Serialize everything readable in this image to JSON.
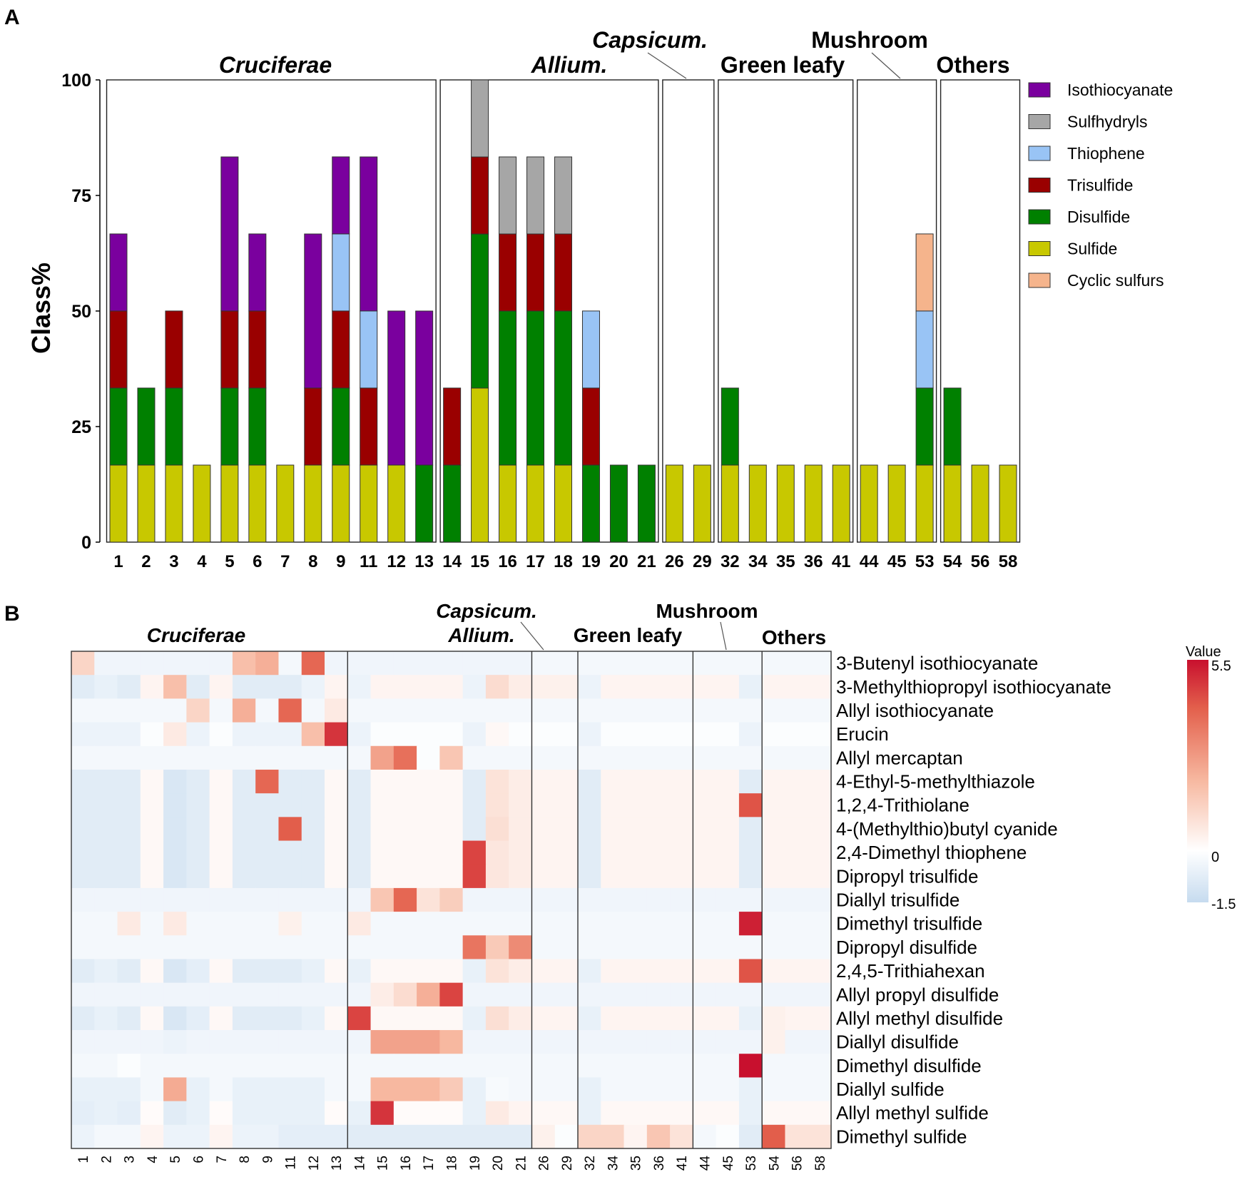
{
  "panel_a_label": "A",
  "panel_b_label": "B",
  "chart_data": [
    {
      "type": "bar",
      "stacked": true,
      "ylabel": "Class%",
      "ylim": [
        0,
        100
      ],
      "yticks": [
        "0",
        "25",
        "50",
        "75",
        "100"
      ],
      "categories": [
        "1",
        "2",
        "3",
        "4",
        "5",
        "6",
        "7",
        "8",
        "9",
        "11",
        "12",
        "13",
        "14",
        "15",
        "16",
        "17",
        "18",
        "19",
        "20",
        "21",
        "26",
        "29",
        "32",
        "34",
        "35",
        "36",
        "41",
        "44",
        "45",
        "53",
        "54",
        "56",
        "58"
      ],
      "groups": [
        {
          "name": "Cruciferae",
          "italic": true,
          "start": 0,
          "end": 11
        },
        {
          "name": "Allium.",
          "italic": true,
          "start": 12,
          "end": 19
        },
        {
          "name": "Capsicum.",
          "italic": true,
          "start": 20,
          "end": 21
        },
        {
          "name": "Green leafy",
          "italic": false,
          "start": 22,
          "end": 26
        },
        {
          "name": "Mushroom",
          "italic": false,
          "start": 27,
          "end": 29
        },
        {
          "name": "Others",
          "italic": false,
          "start": 30,
          "end": 32
        }
      ],
      "series": [
        {
          "name": "Sulfide",
          "color": "#c8c800",
          "values": [
            16.67,
            16.67,
            16.67,
            16.67,
            16.67,
            16.67,
            16.67,
            16.67,
            16.67,
            16.67,
            16.67,
            0,
            0,
            33.33,
            16.67,
            16.67,
            16.67,
            0,
            0,
            0,
            16.67,
            16.67,
            16.67,
            16.67,
            16.67,
            16.67,
            16.67,
            16.67,
            16.67,
            16.67,
            16.67,
            16.67,
            16.67
          ]
        },
        {
          "name": "Disulfide",
          "color": "#008000",
          "values": [
            16.67,
            16.67,
            16.67,
            0,
            16.67,
            16.67,
            0,
            0,
            16.67,
            0,
            0,
            16.67,
            16.67,
            33.33,
            33.33,
            33.33,
            33.33,
            16.67,
            16.67,
            16.67,
            0,
            0,
            16.67,
            0,
            0,
            0,
            0,
            0,
            0,
            16.67,
            16.67,
            0,
            0
          ]
        },
        {
          "name": "Trisulfide",
          "color": "#9a0000",
          "values": [
            16.67,
            0,
            16.67,
            0,
            16.67,
            16.67,
            0,
            16.67,
            16.67,
            16.67,
            0,
            0,
            16.67,
            16.67,
            16.67,
            16.67,
            16.67,
            16.67,
            0,
            0,
            0,
            0,
            0,
            0,
            0,
            0,
            0,
            0,
            0,
            0,
            0,
            0,
            0
          ]
        },
        {
          "name": "Thiophene",
          "color": "#99c4f5",
          "values": [
            0,
            0,
            0,
            0,
            0,
            0,
            0,
            0,
            16.67,
            16.67,
            0,
            0,
            0,
            0,
            0,
            0,
            0,
            16.67,
            0,
            0,
            0,
            0,
            0,
            0,
            0,
            0,
            0,
            0,
            0,
            16.67,
            0,
            0,
            0
          ]
        },
        {
          "name": "Isothiocyanate",
          "color": "#7a009e",
          "values": [
            16.67,
            0,
            0,
            0,
            33.33,
            16.67,
            0,
            33.33,
            16.67,
            33.33,
            33.33,
            33.33,
            0,
            0,
            0,
            0,
            0,
            0,
            0,
            0,
            0,
            0,
            0,
            0,
            0,
            0,
            0,
            0,
            0,
            0,
            0,
            0,
            0
          ]
        },
        {
          "name": "Sulfhydryls",
          "color": "#a6a6a6",
          "values": [
            0,
            0,
            0,
            0,
            0,
            0,
            0,
            0,
            0,
            0,
            0,
            0,
            0,
            16.67,
            16.67,
            16.67,
            16.67,
            0,
            0,
            0,
            0,
            0,
            0,
            0,
            0,
            0,
            0,
            0,
            0,
            0,
            0,
            0,
            0
          ]
        },
        {
          "name": "Cyclic sulfurs",
          "color": "#f5b48c",
          "values": [
            0,
            0,
            0,
            0,
            0,
            0,
            0,
            0,
            0,
            0,
            0,
            0,
            0,
            0,
            0,
            0,
            0,
            0,
            0,
            0,
            0,
            0,
            0,
            0,
            0,
            0,
            0,
            0,
            0,
            16.67,
            0,
            0,
            0
          ]
        }
      ],
      "legend": [
        "Isothiocyanate",
        "Sulfhydryls",
        "Thiophene",
        "Trisulfide",
        "Disulfide",
        "Sulfide",
        "Cyclic sulfurs"
      ],
      "legend_position": "right"
    },
    {
      "type": "heatmap",
      "columns": [
        "1",
        "2",
        "3",
        "4",
        "5",
        "6",
        "7",
        "8",
        "9",
        "11",
        "12",
        "13",
        "14",
        "15",
        "16",
        "17",
        "18",
        "19",
        "20",
        "21",
        "26",
        "29",
        "32",
        "34",
        "35",
        "36",
        "41",
        "44",
        "45",
        "53",
        "54",
        "56",
        "58"
      ],
      "rows": [
        "3-Butenyl isothiocyanate",
        "3-Methylthiopropyl  isothiocyanate",
        "Allyl isothiocyanate",
        "Erucin",
        "Allyl mercaptan",
        "4-Ethyl-5-methylthiazole",
        "1,2,4-Trithiolane",
        "4-(Methylthio)butyl cyanide",
        "2,4-Dimethyl thiophene",
        "Dipropyl trisulfide",
        "Diallyl trisulfide",
        "Dimethyl trisulfide",
        "Dipropyl disulfide",
        "2,4,5-Trithiahexan",
        "Allyl propyl disulfide",
        "Allyl methyl disulfide",
        "Diallyl disulfide",
        "Dimethyl disulfide",
        "Diallyl sulfide",
        "Allyl methyl sulfide",
        "Dimethyl sulfide"
      ],
      "groups": [
        {
          "name": "Cruciferae",
          "italic": true,
          "start": 0,
          "end": 11
        },
        {
          "name": "Allium.",
          "italic": true,
          "start": 12,
          "end": 19
        },
        {
          "name": "Capsicum.",
          "italic": true,
          "start": 20,
          "end": 21
        },
        {
          "name": "Green leafy",
          "italic": false,
          "start": 22,
          "end": 26
        },
        {
          "name": "Mushroom",
          "italic": false,
          "start": 27,
          "end": 29
        },
        {
          "name": "Others",
          "italic": false,
          "start": 30,
          "end": 32
        }
      ],
      "colorbar": {
        "title": "Value",
        "max_label": "5.5",
        "mid_label": "0",
        "min_label": "-1.5",
        "min": -1.5,
        "max": 5.5
      },
      "values": [
        [
          1.2,
          -0.4,
          -0.4,
          -0.4,
          -0.4,
          -0.4,
          -0.4,
          1.8,
          2.2,
          -0.3,
          3.8,
          -0.4,
          -0.4,
          -0.4,
          -0.4,
          -0.4,
          -0.4,
          -0.4,
          -0.4,
          -0.4,
          -0.3,
          -0.3,
          -0.3,
          -0.3,
          -0.3,
          -0.3,
          -0.3,
          -0.3,
          -0.3,
          -0.3,
          -0.3,
          -0.3,
          -0.3
        ],
        [
          -0.8,
          -0.6,
          -0.8,
          0.3,
          1.8,
          -0.8,
          0.3,
          -0.8,
          -0.8,
          -0.8,
          -0.5,
          0.3,
          -0.5,
          0.3,
          0.3,
          0.3,
          0.3,
          -0.5,
          1.0,
          0.5,
          0.4,
          0.4,
          -0.5,
          0.3,
          0.3,
          0.3,
          0.3,
          0.3,
          0.3,
          -0.6,
          0.3,
          0.3,
          0.3
        ],
        [
          -0.3,
          -0.3,
          -0.3,
          -0.3,
          -0.3,
          1.2,
          -0.3,
          2.2,
          -0.3,
          3.8,
          -0.3,
          0.6,
          -0.3,
          -0.3,
          -0.3,
          -0.3,
          -0.3,
          -0.3,
          -0.3,
          -0.3,
          -0.3,
          -0.3,
          -0.3,
          -0.3,
          -0.3,
          -0.3,
          -0.3,
          -0.3,
          -0.3,
          -0.3,
          -0.3,
          -0.3,
          -0.3
        ],
        [
          -0.5,
          -0.5,
          -0.5,
          -0.1,
          0.6,
          -0.5,
          -0.1,
          -0.5,
          -0.5,
          -0.5,
          1.8,
          4.8,
          -0.5,
          -0.1,
          -0.1,
          -0.1,
          -0.1,
          -0.5,
          0.2,
          -0.1,
          -0.1,
          -0.1,
          -0.5,
          -0.1,
          -0.1,
          -0.1,
          -0.1,
          -0.1,
          -0.1,
          -0.5,
          -0.1,
          -0.1,
          -0.1
        ],
        [
          -0.3,
          -0.3,
          -0.3,
          -0.3,
          -0.3,
          -0.3,
          -0.3,
          -0.3,
          -0.3,
          -0.3,
          -0.3,
          -0.3,
          -0.3,
          2.5,
          3.6,
          -0.1,
          1.6,
          -0.3,
          -0.3,
          -0.3,
          -0.3,
          -0.3,
          -0.3,
          -0.3,
          -0.3,
          -0.3,
          -0.3,
          -0.3,
          -0.3,
          -0.3,
          -0.3,
          -0.3,
          -0.3
        ],
        [
          -0.8,
          -0.8,
          -0.8,
          0.2,
          -1.0,
          -0.8,
          0.2,
          -0.8,
          3.8,
          -0.8,
          -0.8,
          0.2,
          -0.8,
          0.2,
          0.2,
          0.2,
          0.2,
          -0.8,
          0.8,
          0.5,
          0.3,
          0.3,
          -0.8,
          0.3,
          0.3,
          0.3,
          0.3,
          0.3,
          0.3,
          -0.8,
          0.3,
          0.3,
          0.3
        ],
        [
          -0.8,
          -0.8,
          -0.8,
          0.2,
          -1.0,
          -0.8,
          0.2,
          -0.8,
          -0.8,
          -0.8,
          -0.8,
          0.2,
          -0.8,
          0.2,
          0.2,
          0.2,
          0.2,
          -0.8,
          0.8,
          0.5,
          0.3,
          0.3,
          -0.8,
          0.3,
          0.3,
          0.3,
          0.3,
          0.3,
          0.3,
          4.2,
          0.3,
          0.3,
          0.3
        ],
        [
          -0.8,
          -0.8,
          -0.8,
          0.2,
          -1.0,
          -0.8,
          0.2,
          -0.8,
          -0.8,
          4.0,
          -0.8,
          0.2,
          -0.8,
          0.2,
          0.2,
          0.2,
          0.2,
          -0.8,
          0.9,
          0.5,
          0.3,
          0.3,
          -0.8,
          0.3,
          0.3,
          0.3,
          0.3,
          0.3,
          0.3,
          -0.8,
          0.3,
          0.3,
          0.3
        ],
        [
          -0.8,
          -0.8,
          -0.8,
          0.2,
          -1.0,
          -0.8,
          0.2,
          -0.8,
          -0.8,
          -0.8,
          -0.8,
          0.2,
          -0.8,
          0.2,
          0.2,
          0.2,
          0.2,
          4.5,
          0.7,
          0.5,
          0.3,
          0.3,
          -0.8,
          0.3,
          0.3,
          0.3,
          0.3,
          0.3,
          0.3,
          -0.8,
          0.3,
          0.3,
          0.3
        ],
        [
          -0.8,
          -0.8,
          -0.8,
          0.2,
          -1.0,
          -0.8,
          0.2,
          -0.8,
          -0.8,
          -0.8,
          -0.8,
          0.2,
          -0.8,
          0.2,
          0.2,
          0.2,
          0.2,
          4.5,
          0.7,
          0.5,
          0.3,
          0.3,
          -0.8,
          0.3,
          0.3,
          0.3,
          0.3,
          0.3,
          0.3,
          -0.8,
          0.3,
          0.3,
          0.3
        ],
        [
          -0.4,
          -0.4,
          -0.4,
          -0.4,
          -0.4,
          -0.4,
          -0.4,
          -0.4,
          -0.4,
          -0.4,
          -0.4,
          -0.4,
          -0.4,
          1.6,
          3.8,
          0.8,
          1.4,
          -0.4,
          -0.4,
          -0.4,
          -0.4,
          -0.4,
          -0.4,
          -0.4,
          -0.4,
          -0.4,
          -0.4,
          -0.4,
          -0.4,
          -0.4,
          -0.4,
          -0.4,
          -0.4
        ],
        [
          -0.3,
          -0.3,
          0.6,
          -0.3,
          0.6,
          -0.3,
          -0.3,
          -0.3,
          -0.3,
          0.4,
          -0.3,
          -0.3,
          0.6,
          -0.3,
          -0.3,
          -0.3,
          -0.3,
          -0.3,
          -0.3,
          -0.3,
          -0.3,
          -0.3,
          -0.3,
          -0.3,
          -0.3,
          -0.3,
          -0.3,
          -0.3,
          -0.3,
          5.2,
          -0.3,
          -0.3,
          -0.3
        ],
        [
          -0.3,
          -0.3,
          -0.3,
          -0.3,
          -0.3,
          -0.3,
          -0.3,
          -0.3,
          -0.3,
          -0.3,
          -0.3,
          -0.3,
          -0.3,
          -0.3,
          -0.3,
          -0.3,
          -0.3,
          3.5,
          1.5,
          3.0,
          -0.3,
          -0.3,
          -0.3,
          -0.3,
          -0.3,
          -0.3,
          -0.3,
          -0.3,
          -0.3,
          -0.3,
          -0.3,
          -0.3,
          -0.3
        ],
        [
          -0.8,
          -0.6,
          -0.8,
          0.2,
          -1.0,
          -0.7,
          0.2,
          -0.8,
          -0.8,
          -0.8,
          -0.6,
          0.2,
          -0.6,
          0.2,
          0.2,
          0.2,
          0.2,
          -0.6,
          0.8,
          0.5,
          0.3,
          0.3,
          -0.6,
          0.3,
          0.3,
          0.3,
          0.3,
          0.3,
          0.3,
          4.2,
          0.3,
          0.3,
          0.3
        ],
        [
          -0.4,
          -0.4,
          -0.4,
          -0.4,
          -0.4,
          -0.4,
          -0.4,
          -0.4,
          -0.4,
          -0.4,
          -0.4,
          -0.4,
          -0.4,
          0.5,
          1.0,
          2.2,
          4.5,
          -0.4,
          -0.4,
          -0.4,
          -0.4,
          -0.4,
          -0.4,
          -0.4,
          -0.4,
          -0.4,
          -0.4,
          -0.4,
          -0.4,
          -0.4,
          -0.4,
          -0.4,
          -0.4
        ],
        [
          -0.8,
          -0.6,
          -0.8,
          0.2,
          -1.0,
          -0.7,
          0.2,
          -0.8,
          -0.8,
          -0.8,
          -0.6,
          0.2,
          4.5,
          0.2,
          0.2,
          0.2,
          0.2,
          -0.6,
          0.9,
          0.5,
          0.3,
          0.3,
          -0.6,
          0.3,
          0.3,
          0.3,
          0.3,
          0.3,
          0.3,
          -0.6,
          0.4,
          0.3,
          0.3
        ],
        [
          -0.4,
          -0.4,
          -0.4,
          -0.4,
          -0.5,
          -0.4,
          -0.4,
          -0.4,
          -0.4,
          -0.4,
          -0.4,
          -0.4,
          -0.4,
          2.5,
          2.5,
          2.5,
          2.0,
          -0.4,
          -0.4,
          -0.4,
          -0.4,
          -0.4,
          -0.4,
          -0.4,
          -0.4,
          -0.4,
          -0.4,
          -0.4,
          -0.4,
          -0.4,
          0.4,
          -0.4,
          -0.4
        ],
        [
          -0.3,
          -0.3,
          -0.1,
          -0.3,
          -0.3,
          -0.3,
          -0.3,
          -0.3,
          -0.3,
          -0.3,
          -0.3,
          -0.3,
          -0.3,
          -0.3,
          -0.3,
          -0.3,
          -0.3,
          -0.3,
          -0.3,
          -0.3,
          -0.3,
          -0.3,
          -0.3,
          -0.3,
          -0.3,
          -0.3,
          -0.3,
          -0.3,
          -0.3,
          5.5,
          -0.3,
          -0.3,
          -0.3
        ],
        [
          -0.6,
          -0.6,
          -0.6,
          -0.3,
          2.3,
          -0.6,
          -0.3,
          -0.6,
          -0.6,
          -0.6,
          -0.6,
          -0.3,
          -0.3,
          2.0,
          2.0,
          2.0,
          1.5,
          -0.6,
          -0.2,
          -0.3,
          -0.3,
          -0.3,
          -0.6,
          -0.3,
          -0.3,
          -0.3,
          -0.3,
          -0.3,
          -0.3,
          -0.6,
          -0.3,
          -0.3,
          -0.3
        ],
        [
          -0.7,
          -0.6,
          -0.7,
          0.1,
          -0.8,
          -0.6,
          0.1,
          -0.6,
          -0.6,
          -0.6,
          -0.6,
          0.1,
          -0.6,
          4.8,
          0.1,
          0.1,
          0.1,
          -0.6,
          0.6,
          0.3,
          0.2,
          0.2,
          -0.6,
          0.2,
          0.2,
          0.2,
          0.2,
          0.2,
          0.2,
          -0.6,
          0.2,
          0.2,
          0.2
        ],
        [
          -0.5,
          -0.3,
          -0.3,
          0.3,
          -0.5,
          -0.5,
          0.3,
          -0.5,
          -0.5,
          -0.7,
          -0.7,
          -0.7,
          -0.8,
          -0.8,
          -0.8,
          -0.8,
          -0.8,
          -0.8,
          -0.8,
          -0.8,
          0.4,
          -0.1,
          1.2,
          1.2,
          0.3,
          1.6,
          0.8,
          -0.3,
          -0.1,
          -0.8,
          4.0,
          0.8,
          0.8
        ]
      ]
    }
  ]
}
